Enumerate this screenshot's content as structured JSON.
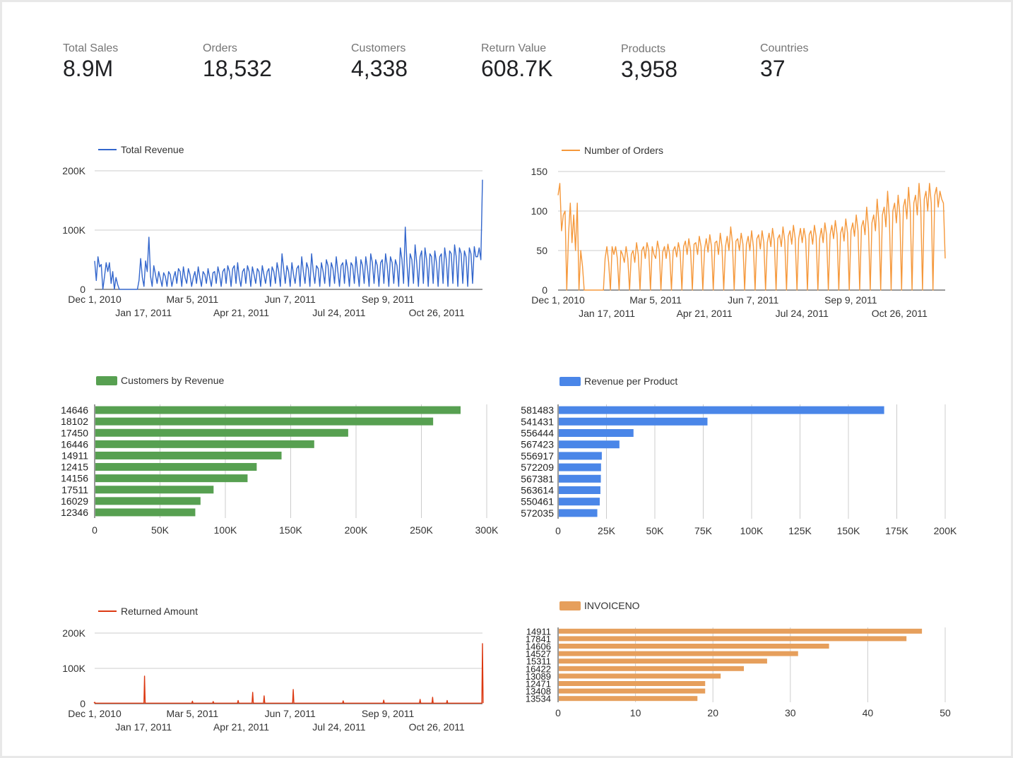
{
  "kpis": [
    {
      "label": "Total Sales",
      "value": "8.9M"
    },
    {
      "label": "Orders",
      "value": "18,532"
    },
    {
      "label": "Customers",
      "value": "4,338"
    },
    {
      "label": "Return Value",
      "value": "608.7K"
    },
    {
      "label": "Products",
      "value": "3,958"
    },
    {
      "label": "Countries",
      "value": "37"
    }
  ],
  "chart_data": [
    {
      "id": "revenue",
      "type": "line",
      "series": [
        {
          "name": "Total Revenue",
          "color": "#3366cc"
        }
      ],
      "y_ticks": [
        "0",
        "100K",
        "200K"
      ],
      "ylim": [
        0,
        200000
      ],
      "x_ticks_top": [
        "Dec 1, 2010",
        "Mar 5, 2011",
        "Jun 7, 2011",
        "Sep 9, 2011"
      ],
      "x_ticks_bottom": [
        "Jan 17, 2011",
        "Apr 21, 2011",
        "Jul 24, 2011",
        "Oct 26, 2011"
      ],
      "x_start": "2010-12-01",
      "x_end": "2011-12-09",
      "daily_values": [
        48000,
        15000,
        55000,
        38000,
        42000,
        0,
        22000,
        45000,
        30000,
        45000,
        10000,
        30000,
        0,
        20000,
        8000,
        0,
        0,
        0,
        0,
        0,
        0,
        0,
        0,
        0,
        0,
        0,
        0,
        15000,
        52000,
        20000,
        5000,
        48000,
        30000,
        88000,
        22000,
        5000,
        40000,
        25000,
        10000,
        30000,
        18000,
        5000,
        28000,
        22000,
        5000,
        30000,
        25000,
        5000,
        20000,
        30000,
        10000,
        35000,
        30000,
        5000,
        38000,
        20000,
        10000,
        35000,
        25000,
        5000,
        20000,
        30000,
        10000,
        38000,
        20000,
        5000,
        30000,
        25000,
        10000,
        35000,
        20000,
        5000,
        28000,
        30000,
        10000,
        38000,
        25000,
        5000,
        30000,
        35000,
        10000,
        40000,
        30000,
        5000,
        35000,
        40000,
        10000,
        45000,
        20000,
        5000,
        30000,
        35000,
        10000,
        40000,
        30000,
        5000,
        38000,
        25000,
        10000,
        35000,
        30000,
        5000,
        40000,
        25000,
        10000,
        30000,
        35000,
        5000,
        38000,
        30000,
        10000,
        45000,
        30000,
        5000,
        60000,
        35000,
        10000,
        40000,
        30000,
        5000,
        45000,
        25000,
        10000,
        35000,
        40000,
        5000,
        55000,
        30000,
        10000,
        45000,
        35000,
        5000,
        60000,
        30000,
        10000,
        40000,
        35000,
        5000,
        45000,
        30000,
        10000,
        50000,
        40000,
        5000,
        45000,
        35000,
        10000,
        55000,
        30000,
        5000,
        40000,
        45000,
        10000,
        50000,
        35000,
        5000,
        45000,
        40000,
        10000,
        55000,
        30000,
        5000,
        50000,
        40000,
        10000,
        55000,
        35000,
        5000,
        60000,
        45000,
        10000,
        50000,
        40000,
        5000,
        45000,
        50000,
        10000,
        60000,
        40000,
        5000,
        55000,
        45000,
        10000,
        50000,
        40000,
        5000,
        70000,
        50000,
        10000,
        105000,
        45000,
        5000,
        60000,
        50000,
        10000,
        75000,
        45000,
        5000,
        55000,
        65000,
        10000,
        70000,
        50000,
        5000,
        60000,
        55000,
        10000,
        65000,
        45000,
        5000,
        55000,
        60000,
        10000,
        70000,
        50000,
        5000,
        65000,
        60000,
        10000,
        75000,
        55000,
        5000,
        70000,
        60000,
        10000,
        65000,
        55000,
        5000,
        70000,
        60000,
        10000,
        72000,
        55000,
        55000,
        70000,
        50000,
        185000
      ]
    },
    {
      "id": "orders",
      "type": "line",
      "series": [
        {
          "name": "Number of Orders",
          "color": "#f5983b"
        }
      ],
      "y_ticks": [
        "0",
        "50",
        "100",
        "150"
      ],
      "ylim": [
        0,
        150
      ],
      "x_ticks_top": [
        "Dec 1, 2010",
        "Mar 5, 2011",
        "Jun 7, 2011",
        "Sep 9, 2011"
      ],
      "x_ticks_bottom": [
        "Jan 17, 2011",
        "Apr 21, 2011",
        "Jul 24, 2011",
        "Oct 26, 2011"
      ],
      "x_start": "2010-12-01",
      "x_end": "2011-12-09",
      "daily_values": [
        120,
        135,
        75,
        95,
        100,
        0,
        70,
        110,
        60,
        95,
        50,
        110,
        0,
        50,
        30,
        0,
        0,
        0,
        0,
        0,
        0,
        0,
        0,
        0,
        0,
        0,
        0,
        40,
        55,
        35,
        0,
        55,
        45,
        55,
        40,
        0,
        50,
        45,
        35,
        55,
        40,
        0,
        45,
        50,
        35,
        60,
        45,
        0,
        50,
        55,
        40,
        60,
        50,
        0,
        55,
        45,
        40,
        62,
        50,
        0,
        48,
        55,
        40,
        58,
        45,
        0,
        50,
        55,
        42,
        60,
        48,
        0,
        55,
        62,
        45,
        65,
        50,
        0,
        58,
        60,
        45,
        68,
        55,
        0,
        52,
        65,
        48,
        70,
        55,
        0,
        60,
        62,
        45,
        72,
        55,
        0,
        55,
        68,
        50,
        80,
        60,
        0,
        62,
        65,
        50,
        72,
        58,
        0,
        58,
        68,
        50,
        75,
        55,
        0,
        65,
        70,
        52,
        75,
        60,
        0,
        60,
        72,
        55,
        78,
        62,
        0,
        65,
        70,
        55,
        80,
        62,
        0,
        68,
        75,
        58,
        82,
        65,
        0,
        65,
        78,
        60,
        78,
        65,
        0,
        70,
        75,
        58,
        82,
        68,
        0,
        65,
        78,
        60,
        85,
        70,
        0,
        70,
        82,
        65,
        88,
        70,
        0,
        72,
        80,
        62,
        90,
        72,
        0,
        75,
        85,
        68,
        95,
        75,
        0,
        80,
        88,
        70,
        105,
        78,
        0,
        85,
        95,
        75,
        115,
        85,
        0,
        95,
        105,
        80,
        125,
        90,
        0,
        100,
        110,
        85,
        120,
        95,
        0,
        105,
        115,
        90,
        130,
        100,
        0,
        110,
        120,
        95,
        135,
        105,
        0,
        115,
        125,
        100,
        135,
        110,
        0,
        120,
        130,
        105,
        125,
        115,
        110,
        40
      ]
    },
    {
      "id": "customers",
      "type": "bar",
      "orientation": "horizontal",
      "series": [
        {
          "name": "Customers by Revenue",
          "color": "#57a051"
        }
      ],
      "categories": [
        "14646",
        "18102",
        "17450",
        "16446",
        "14911",
        "12415",
        "14156",
        "17511",
        "16029",
        "12346"
      ],
      "values": [
        280000,
        259000,
        194000,
        168000,
        143000,
        124000,
        117000,
        91000,
        81000,
        77000
      ],
      "x_ticks": [
        "0",
        "50K",
        "100K",
        "150K",
        "200K",
        "250K",
        "300K"
      ],
      "xlim": [
        0,
        300000
      ]
    },
    {
      "id": "products",
      "type": "bar",
      "orientation": "horizontal",
      "series": [
        {
          "name": "Revenue per Product",
          "color": "#4a86e8"
        }
      ],
      "categories": [
        "581483",
        "541431",
        "556444",
        "567423",
        "556917",
        "572209",
        "567381",
        "563614",
        "550461",
        "572035"
      ],
      "values": [
        168470,
        77184,
        38970,
        31700,
        22600,
        22200,
        22100,
        21880,
        21535,
        20277
      ],
      "x_ticks": [
        "0",
        "25K",
        "50K",
        "75K",
        "100K",
        "125K",
        "150K",
        "175K",
        "200K"
      ],
      "xlim": [
        0,
        200000
      ]
    },
    {
      "id": "returns",
      "type": "line",
      "series": [
        {
          "name": "Returned Amount",
          "color": "#dc3912"
        }
      ],
      "y_ticks": [
        "0",
        "100K",
        "200K"
      ],
      "ylim": [
        0,
        200000
      ],
      "x_ticks_top": [
        "Dec 1, 2010",
        "Mar 5, 2011",
        "Jun 7, 2011",
        "Sep 9, 2011"
      ],
      "x_ticks_bottom": [
        "Jan 17, 2011",
        "Apr 21, 2011",
        "Jul 24, 2011",
        "Oct 26, 2011"
      ],
      "x_start": "2010-12-01",
      "x_end": "2011-12-09",
      "spikes": [
        {
          "x": "2010-12-01",
          "y": 4000
        },
        {
          "x": "2011-01-18",
          "y": 78000
        },
        {
          "x": "2011-03-05",
          "y": 7000
        },
        {
          "x": "2011-03-25",
          "y": 6000
        },
        {
          "x": "2011-04-18",
          "y": 9000
        },
        {
          "x": "2011-05-02",
          "y": 32000
        },
        {
          "x": "2011-05-13",
          "y": 22000
        },
        {
          "x": "2011-06-10",
          "y": 40000
        },
        {
          "x": "2011-07-28",
          "y": 8000
        },
        {
          "x": "2011-09-05",
          "y": 10000
        },
        {
          "x": "2011-10-10",
          "y": 12000
        },
        {
          "x": "2011-10-22",
          "y": 18000
        },
        {
          "x": "2011-11-05",
          "y": 9000
        },
        {
          "x": "2011-12-09",
          "y": 170000
        }
      ]
    },
    {
      "id": "invoiceno",
      "type": "bar",
      "orientation": "horizontal",
      "series": [
        {
          "name": "INVOICENO",
          "color": "#e69f5c"
        }
      ],
      "categories": [
        "14911",
        "17841",
        "14606",
        "14527",
        "15311",
        "16422",
        "13089",
        "12471",
        "13408",
        "13534"
      ],
      "values": [
        47,
        45,
        35,
        31,
        27,
        24,
        21,
        19,
        19,
        18
      ],
      "x_ticks": [
        "0",
        "10",
        "20",
        "30",
        "40",
        "50"
      ],
      "xlim": [
        0,
        50
      ]
    }
  ]
}
